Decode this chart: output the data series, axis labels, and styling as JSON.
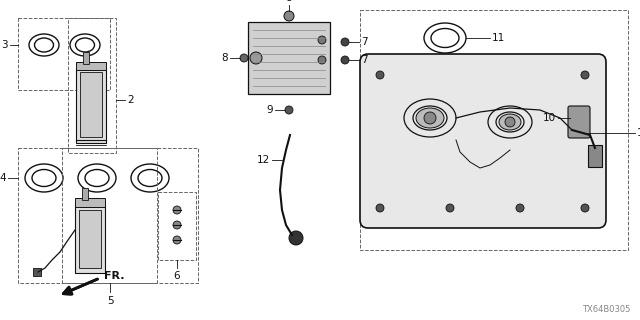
{
  "bg_color": "#ffffff",
  "line_color": "#111111",
  "gray_line": "#777777",
  "diagram_code": "TX64B0305",
  "figsize": [
    6.4,
    3.2
  ],
  "dpi": 100
}
